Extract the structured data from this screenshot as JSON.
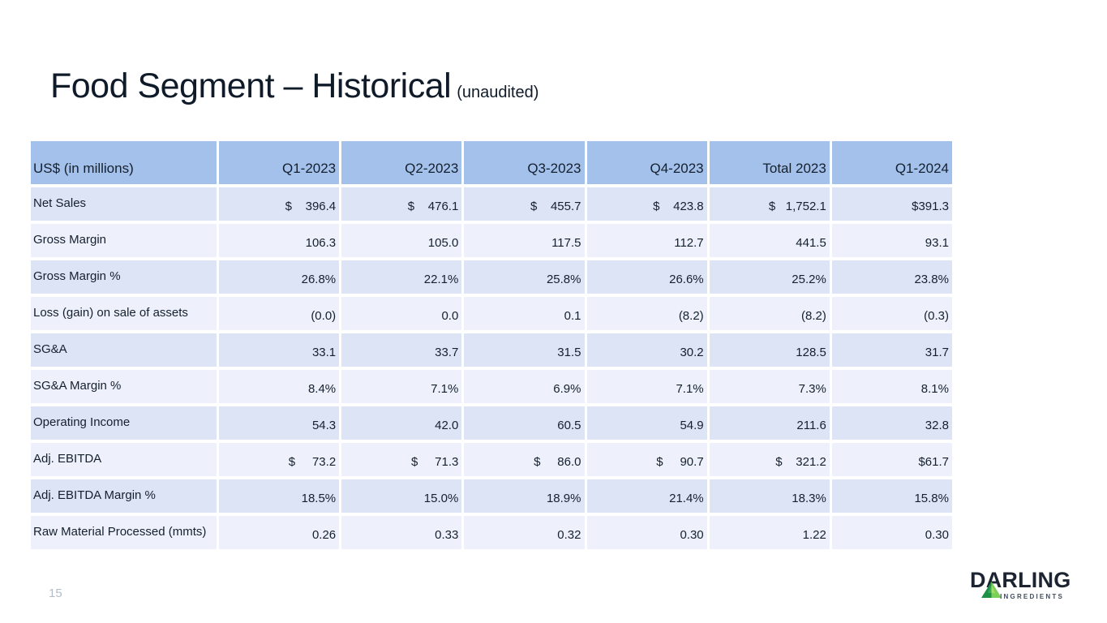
{
  "slide": {
    "title": "Food Segment – Historical",
    "title_suffix": "(unaudited)",
    "page_number": "15"
  },
  "colors": {
    "header_bg": "#a3c1ea",
    "row_a": "#dde4f6",
    "row_b": "#eef1fb",
    "ink": "#15202f",
    "title_ink": "#101b2a",
    "muted": "#b3bcc9",
    "logo_ink": "#1c2331",
    "green_dark": "#1e9146",
    "green_light": "#7ccf57"
  },
  "logo": {
    "name": "DARLING",
    "sub": "INGREDIENTS",
    "icon": "green-triangle-icon"
  },
  "chart_data": {
    "type": "table",
    "title": "Food Segment – Historical (unaudited)",
    "unit_note": "US$ (in millions)",
    "columns": [
      "Q1-2023",
      "Q2-2023",
      "Q3-2023",
      "Q4-2023",
      "Total 2023",
      "Q1-2024"
    ],
    "rows": [
      {
        "label": "Net Sales",
        "values": [
          396.4,
          476.1,
          455.7,
          423.8,
          1752.1,
          391.3
        ]
      },
      {
        "label": "Gross Margin",
        "values": [
          106.3,
          105.0,
          117.5,
          112.7,
          441.5,
          93.1
        ]
      },
      {
        "label": "Gross Margin %",
        "values": [
          "26.8%",
          "22.1%",
          "25.8%",
          "26.6%",
          "25.2%",
          "23.8%"
        ]
      },
      {
        "label": "Loss (gain) on sale of assets",
        "values": [
          "(0.0)",
          "0.0",
          "0.1",
          "(8.2)",
          "(8.2)",
          "(0.3)"
        ]
      },
      {
        "label": "SG&A",
        "values": [
          33.1,
          33.7,
          31.5,
          30.2,
          128.5,
          31.7
        ]
      },
      {
        "label": "SG&A Margin %",
        "values": [
          "8.4%",
          "7.1%",
          "6.9%",
          "7.1%",
          "7.3%",
          "8.1%"
        ]
      },
      {
        "label": "Operating Income",
        "values": [
          54.3,
          42.0,
          60.5,
          54.9,
          211.6,
          32.8
        ]
      },
      {
        "label": "Adj. EBITDA",
        "values": [
          73.2,
          71.3,
          86.0,
          90.7,
          321.2,
          61.7
        ]
      },
      {
        "label": "Adj. EBITDA Margin %",
        "values": [
          "18.5%",
          "15.0%",
          "18.9%",
          "21.4%",
          "18.3%",
          "15.8%"
        ]
      },
      {
        "label": "Raw Material Processed (mmts)",
        "values": [
          0.26,
          0.33,
          0.32,
          0.3,
          1.22,
          0.3
        ]
      }
    ]
  },
  "table": {
    "header": [
      "US$ (in millions)",
      "Q1-2023",
      "Q2-2023",
      "Q3-2023",
      "Q4-2023",
      "Total 2023",
      "Q1-2024"
    ],
    "rows": [
      {
        "label": "Net Sales",
        "cells": [
          "$    396.4",
          "$    476.1",
          "$    455.7",
          "$    423.8",
          "$   1,752.1",
          "$391.3"
        ]
      },
      {
        "label": "Gross Margin",
        "cells": [
          "106.3",
          "105.0",
          "117.5",
          "112.7",
          "441.5",
          "93.1"
        ]
      },
      {
        "label": "Gross Margin %",
        "cells": [
          "26.8%",
          "22.1%",
          "25.8%",
          "26.6%",
          "25.2%",
          "23.8%"
        ]
      },
      {
        "label": "Loss (gain) on sale of assets",
        "cells": [
          "(0.0)",
          "0.0",
          "0.1",
          "(8.2)",
          "(8.2)",
          "(0.3)"
        ]
      },
      {
        "label": "SG&A",
        "cells": [
          "33.1",
          "33.7",
          "31.5",
          "30.2",
          "128.5",
          "31.7"
        ]
      },
      {
        "label": "SG&A Margin %",
        "cells": [
          "8.4%",
          "7.1%",
          "6.9%",
          "7.1%",
          "7.3%",
          "8.1%"
        ]
      },
      {
        "label": "Operating Income",
        "cells": [
          "54.3",
          "42.0",
          "60.5",
          "54.9",
          "211.6",
          "32.8"
        ]
      },
      {
        "label": "Adj. EBITDA",
        "cells": [
          "$     73.2",
          "$     71.3",
          "$     86.0",
          "$     90.7",
          "$    321.2",
          "$61.7"
        ]
      },
      {
        "label": "Adj. EBITDA Margin %",
        "cells": [
          "18.5%",
          "15.0%",
          "18.9%",
          "21.4%",
          "18.3%",
          "15.8%"
        ]
      },
      {
        "label": "Raw Material Processed (mmts)",
        "cells": [
          "0.26",
          "0.33",
          "0.32",
          "0.30",
          "1.22",
          "0.30"
        ]
      }
    ]
  }
}
